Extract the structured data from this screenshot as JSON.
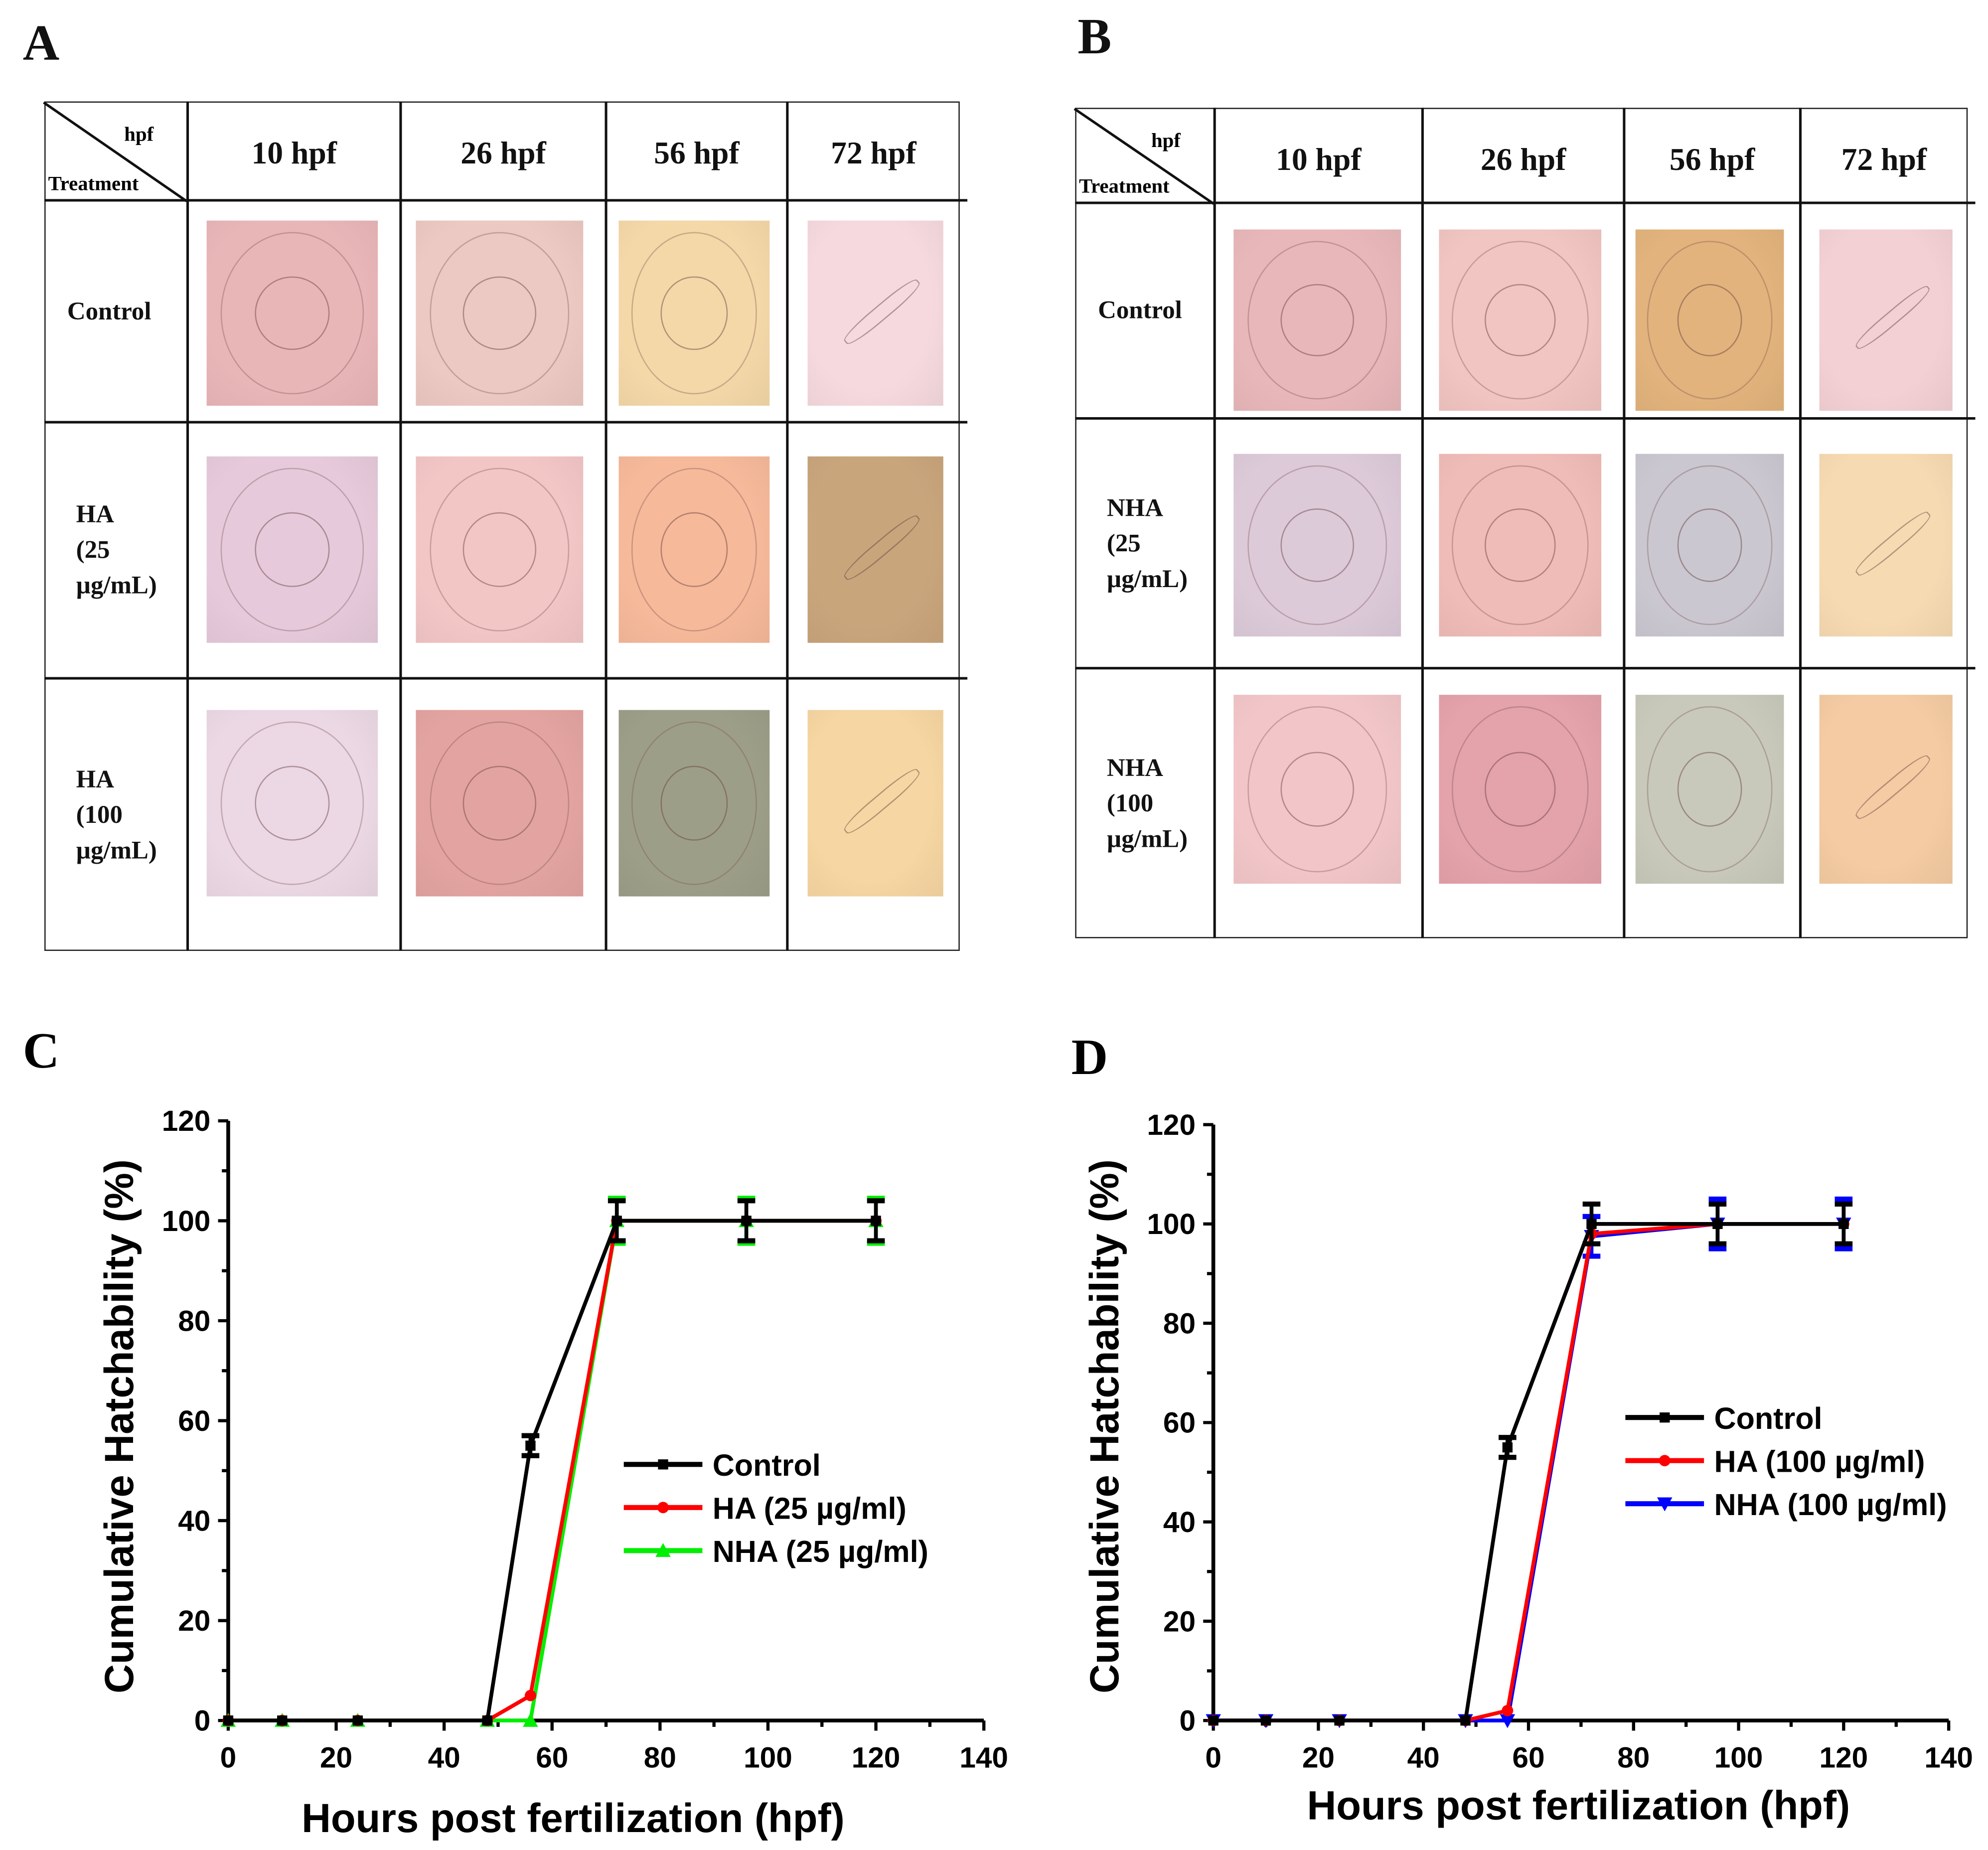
{
  "panels": {
    "A": {
      "letter": "A",
      "corner_top": "hpf",
      "corner_bottom": "Treatment",
      "columns": [
        "10 hpf",
        "26 hpf",
        "56 hpf",
        "72 hpf"
      ],
      "rows": [
        {
          "label": [
            "Control"
          ],
          "photo_colors": [
            "#e9b6b8",
            "#ecc9c2",
            "#f4d8a8",
            "#f5d9de"
          ]
        },
        {
          "label": [
            "HA",
            "(25",
            "µg/mL)"
          ],
          "photo_colors": [
            "#e6cadb",
            "#f3c6c6",
            "#f6b99a",
            "#c9a57c"
          ]
        },
        {
          "label": [
            "HA",
            "(100",
            "µg/mL)"
          ],
          "photo_colors": [
            "#ebd8e4",
            "#e3a4a1",
            "#9d9e88",
            "#f6d6a2"
          ]
        }
      ]
    },
    "B": {
      "letter": "B",
      "corner_top": "hpf",
      "corner_bottom": "Treatment",
      "columns": [
        "10 hpf",
        "26 hpf",
        "56 hpf",
        "72 hpf"
      ],
      "rows": [
        {
          "label": [
            "Control"
          ],
          "photo_colors": [
            "#e8b7ba",
            "#f1c5c1",
            "#e2b37c",
            "#f3d0d4"
          ]
        },
        {
          "label": [
            "NHA",
            "(25",
            "µg/mL)"
          ],
          "photo_colors": [
            "#dccad9",
            "#f0bcb7",
            "#cac7d0",
            "#f6dab2"
          ]
        },
        {
          "label": [
            "NHA",
            "(100",
            "µg/mL)"
          ],
          "photo_colors": [
            "#f2c6c9",
            "#e4a2aa",
            "#c8c9ba",
            "#f4cba2"
          ]
        }
      ]
    }
  },
  "chart_data": [
    {
      "letter": "C",
      "type": "line",
      "title": "",
      "xlabel": "Hours post fertilization (hpf)",
      "ylabel": "Cumulative Hatchability (%)",
      "xlim": [
        0,
        140
      ],
      "ylim": [
        0,
        120
      ],
      "xticks": [
        "0",
        "20",
        "40",
        "60",
        "80",
        "100",
        "120",
        "140"
      ],
      "yticks": [
        "0",
        "20",
        "40",
        "60",
        "80",
        "100",
        "120"
      ],
      "legend_position": "center-right",
      "x": [
        0,
        10,
        24,
        48,
        56,
        72,
        96,
        120
      ],
      "series": [
        {
          "name": "Control",
          "color": "#000000",
          "marker": "square",
          "values": [
            0,
            0,
            0,
            0,
            55,
            100,
            100,
            100
          ],
          "errors": [
            0,
            0,
            0,
            0,
            2,
            4,
            4,
            4
          ]
        },
        {
          "name": "HA (25 µg/ml)",
          "color": "#ff0000",
          "marker": "circle",
          "values": [
            0,
            0,
            0,
            0,
            5,
            100,
            100,
            100
          ],
          "errors": [
            0,
            0,
            0,
            0,
            0,
            0,
            0,
            0
          ]
        },
        {
          "name": "NHA (25 µg/ml)",
          "color": "#00ee00",
          "marker": "triangle-up",
          "values": [
            0,
            0,
            0,
            0,
            0,
            100,
            100,
            100
          ],
          "errors": [
            0,
            0,
            0,
            0,
            0,
            4.5,
            4.5,
            4.5
          ]
        }
      ]
    },
    {
      "letter": "D",
      "type": "line",
      "title": "",
      "xlabel": "Hours post fertilization (hpf)",
      "ylabel": "Cumulative Hatchability (%)",
      "xlim": [
        0,
        140
      ],
      "ylim": [
        0,
        120
      ],
      "xticks": [
        "0",
        "20",
        "40",
        "60",
        "80",
        "100",
        "120",
        "140"
      ],
      "yticks": [
        "0",
        "20",
        "40",
        "60",
        "80",
        "100",
        "120"
      ],
      "legend_position": "center-right",
      "x": [
        0,
        10,
        24,
        48,
        56,
        72,
        96,
        120
      ],
      "series": [
        {
          "name": "Control",
          "color": "#000000",
          "marker": "square",
          "values": [
            0,
            0,
            0,
            0,
            55,
            100,
            100,
            100
          ],
          "errors": [
            0,
            0,
            0,
            0,
            2,
            4,
            4,
            4
          ]
        },
        {
          "name": "HA (100 µg/ml)",
          "color": "#ff0000",
          "marker": "circle",
          "values": [
            0,
            0,
            0,
            0,
            2,
            98,
            100,
            100
          ],
          "errors": [
            0,
            0,
            0,
            0,
            0,
            0,
            0,
            0
          ]
        },
        {
          "name": "NHA (100 µg/ml)",
          "color": "#0000ff",
          "marker": "triangle-down",
          "values": [
            0,
            0,
            0,
            0,
            0,
            97.5,
            100,
            100
          ],
          "errors": [
            0,
            0,
            0,
            0,
            0,
            4,
            5,
            5
          ]
        }
      ]
    }
  ]
}
